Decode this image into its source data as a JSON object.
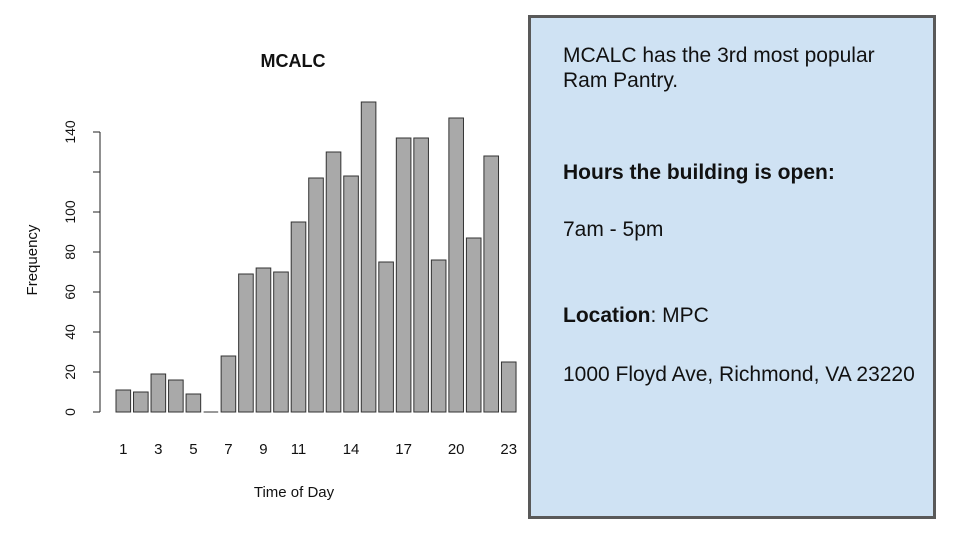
{
  "chart_data": {
    "type": "bar",
    "title": "MCALC",
    "xlabel": "Time of Day",
    "ylabel": "Frequency",
    "categories": [
      "1",
      "2",
      "3",
      "4",
      "5",
      "6",
      "7",
      "8",
      "9",
      "10",
      "11",
      "12",
      "13",
      "14",
      "15",
      "16",
      "17",
      "18",
      "19",
      "20",
      "21",
      "22",
      "23"
    ],
    "x_tick_labels": [
      "1",
      "3",
      "5",
      "7",
      "9",
      "11",
      "14",
      "17",
      "20",
      "23"
    ],
    "y_ticks": [
      0,
      20,
      40,
      60,
      80,
      100,
      140
    ],
    "values": [
      11,
      10,
      19,
      16,
      9,
      0,
      28,
      69,
      72,
      70,
      95,
      117,
      130,
      118,
      155,
      75,
      137,
      137,
      76,
      147,
      87,
      128,
      25
    ],
    "bar_color": "#a9a9a9",
    "ylim": [
      0,
      160
    ]
  },
  "info": {
    "intro": "MCALC has the 3rd most popular Ram Pantry.",
    "hours_heading": "Hours the building is open:",
    "hours": "7am - 5pm",
    "location_label": "Location",
    "location_value": ": MPC",
    "address": "1000 Floyd Ave, Richmond, VA 23220"
  }
}
